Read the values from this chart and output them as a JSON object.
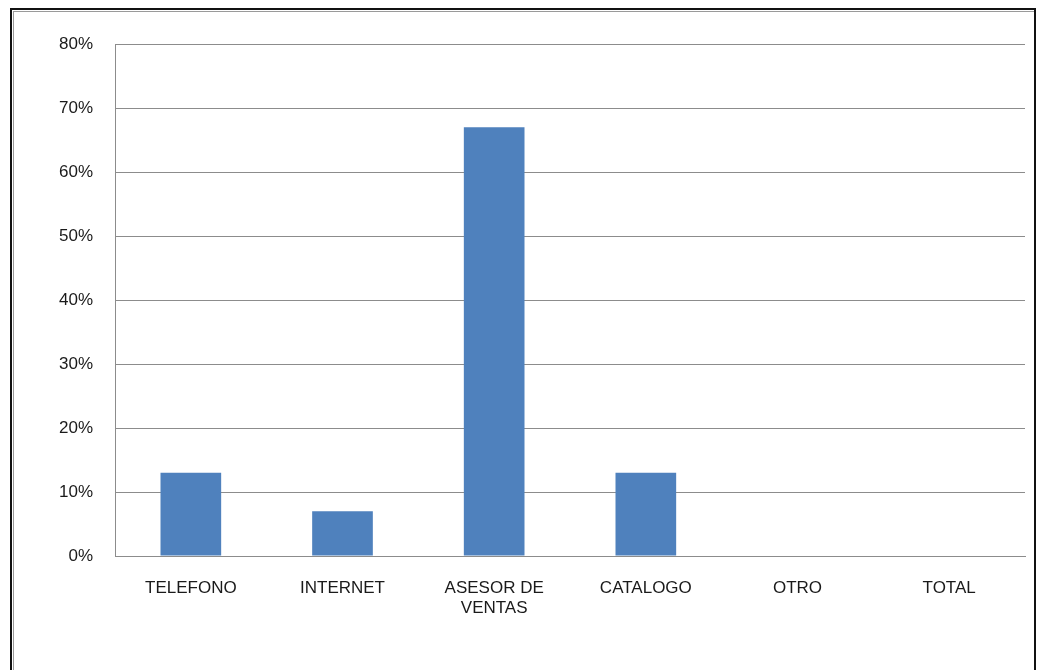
{
  "chart_data": {
    "type": "bar",
    "categories": [
      "TELEFONO",
      "INTERNET",
      "ASESOR DE VENTAS",
      "CATALOGO",
      "OTRO",
      "TOTAL"
    ],
    "values": [
      13,
      7,
      67,
      13,
      0,
      0
    ],
    "color": "#4f81bd",
    "ylim": [
      0,
      80
    ],
    "yticks": [
      {
        "value": 0,
        "label": "0%"
      },
      {
        "value": 10,
        "label": "10%"
      },
      {
        "value": 20,
        "label": "20%"
      },
      {
        "value": 30,
        "label": "30%"
      },
      {
        "value": 40,
        "label": "40%"
      },
      {
        "value": 50,
        "label": "50%"
      },
      {
        "value": 60,
        "label": "60%"
      },
      {
        "value": 70,
        "label": "70%"
      },
      {
        "value": 80,
        "label": "80%"
      }
    ],
    "grid": "y"
  }
}
